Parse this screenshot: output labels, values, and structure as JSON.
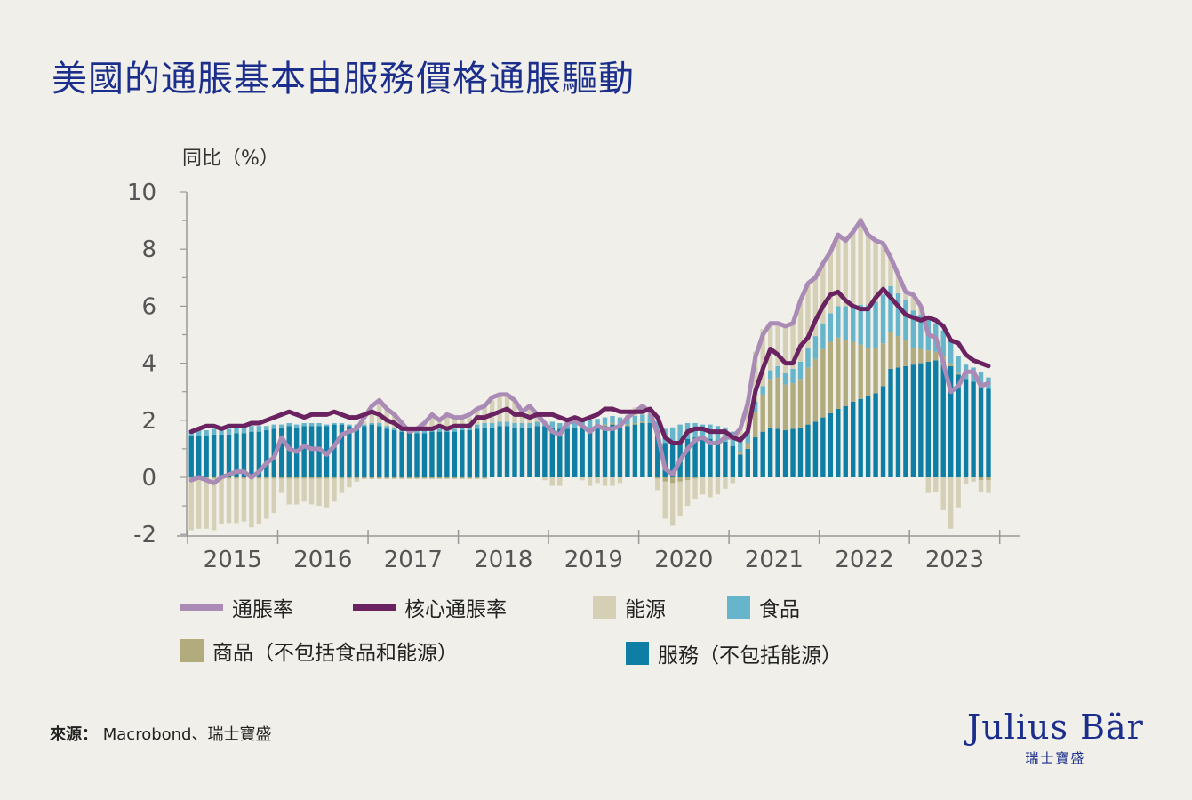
{
  "title": "美國的通脹基本由服務價格通脹驅動",
  "source_label": "來源：",
  "source_text": "Macrobond、瑞士寶盛",
  "logo": {
    "name": "Julius Bär",
    "sub": "瑞士寶盛"
  },
  "chart_data": {
    "type": "bar",
    "stacked": true,
    "title": "美國的通脹基本由服務價格通脹驅動",
    "ylabel": "同比（%）",
    "xlabel": "",
    "ylim": [
      -2,
      10
    ],
    "yticks": [
      10,
      8,
      6,
      4,
      2,
      0,
      -2
    ],
    "xticklabels": [
      "2015",
      "2016",
      "2017",
      "2018",
      "2019",
      "2020",
      "2021",
      "2022",
      "2023"
    ],
    "x_start": "2015-01",
    "frequency": "monthly",
    "grid": false,
    "legend": "bottom",
    "colors": {
      "services": "#0f7ea5",
      "goods": "#b2ab7e",
      "food": "#66b5cb",
      "energy": "#d5d0b5",
      "headline": "#a98bb6",
      "core": "#6a2260"
    },
    "bar_series": [
      {
        "key": "services",
        "name": "服務（不包括能源）",
        "values": [
          1.45,
          1.45,
          1.45,
          1.5,
          1.5,
          1.5,
          1.55,
          1.55,
          1.6,
          1.6,
          1.65,
          1.7,
          1.75,
          1.8,
          1.75,
          1.8,
          1.8,
          1.8,
          1.8,
          1.85,
          1.85,
          1.8,
          1.8,
          1.8,
          1.85,
          1.8,
          1.7,
          1.65,
          1.6,
          1.6,
          1.55,
          1.55,
          1.6,
          1.6,
          1.6,
          1.6,
          1.65,
          1.65,
          1.7,
          1.75,
          1.75,
          1.8,
          1.8,
          1.75,
          1.75,
          1.75,
          1.8,
          1.8,
          1.75,
          1.7,
          1.7,
          1.75,
          1.75,
          1.75,
          1.8,
          1.8,
          1.85,
          1.8,
          1.8,
          1.85,
          1.9,
          1.9,
          1.6,
          1.2,
          1.2,
          1.25,
          1.35,
          1.4,
          1.35,
          1.35,
          1.3,
          1.25,
          1.1,
          0.8,
          1.0,
          1.4,
          1.6,
          1.75,
          1.7,
          1.65,
          1.7,
          1.75,
          1.85,
          1.95,
          2.1,
          2.25,
          2.4,
          2.5,
          2.65,
          2.75,
          2.85,
          2.95,
          3.2,
          3.8,
          3.85,
          3.9,
          3.95,
          4.0,
          4.05,
          4.1,
          4.05,
          3.9,
          3.6,
          3.45,
          3.35,
          3.3,
          3.1
        ]
      },
      {
        "key": "goods",
        "name": "商品（不包括食品和能源）",
        "values": [
          -0.05,
          -0.05,
          -0.05,
          -0.05,
          -0.05,
          -0.05,
          -0.05,
          -0.05,
          -0.05,
          -0.05,
          -0.05,
          -0.05,
          -0.05,
          -0.05,
          -0.05,
          -0.05,
          -0.05,
          -0.05,
          -0.05,
          -0.05,
          -0.05,
          -0.05,
          -0.05,
          -0.05,
          -0.05,
          -0.05,
          -0.05,
          -0.05,
          -0.05,
          -0.05,
          -0.05,
          -0.05,
          -0.05,
          -0.05,
          -0.05,
          -0.05,
          -0.05,
          -0.05,
          -0.05,
          -0.05,
          0.0,
          0.0,
          0.0,
          0.0,
          0.0,
          0.0,
          0.0,
          0.0,
          0.0,
          0.0,
          0.0,
          0.0,
          0.0,
          0.0,
          0.0,
          0.05,
          0.05,
          0.05,
          0.05,
          0.05,
          0.05,
          0.0,
          -0.05,
          -0.15,
          -0.2,
          -0.15,
          -0.1,
          -0.05,
          0.0,
          0.0,
          0.0,
          0.0,
          0.0,
          0.1,
          0.2,
          0.9,
          1.3,
          1.7,
          1.8,
          1.6,
          1.6,
          1.7,
          2.0,
          2.2,
          2.4,
          2.5,
          2.5,
          2.3,
          2.1,
          1.9,
          1.7,
          1.6,
          1.5,
          1.3,
          1.1,
          0.9,
          0.6,
          0.5,
          0.4,
          0.3,
          0.2,
          0.1,
          0.05,
          0.0,
          0.0,
          -0.1,
          -0.1
        ]
      },
      {
        "key": "food",
        "name": "食品",
        "values": [
          0.2,
          0.2,
          0.2,
          0.2,
          0.2,
          0.2,
          0.2,
          0.2,
          0.2,
          0.2,
          0.15,
          0.15,
          0.1,
          0.1,
          0.1,
          0.1,
          0.1,
          0.1,
          0.05,
          0.05,
          0.05,
          0.05,
          0.05,
          0.05,
          0.05,
          0.1,
          0.1,
          0.1,
          0.1,
          0.1,
          0.1,
          0.1,
          0.1,
          0.1,
          0.1,
          0.1,
          0.1,
          0.1,
          0.15,
          0.15,
          0.15,
          0.15,
          0.15,
          0.15,
          0.15,
          0.15,
          0.15,
          0.15,
          0.2,
          0.2,
          0.2,
          0.2,
          0.25,
          0.25,
          0.25,
          0.25,
          0.25,
          0.25,
          0.25,
          0.25,
          0.25,
          0.3,
          0.35,
          0.5,
          0.55,
          0.6,
          0.55,
          0.5,
          0.5,
          0.5,
          0.5,
          0.5,
          0.5,
          0.4,
          0.4,
          0.35,
          0.3,
          0.3,
          0.4,
          0.4,
          0.5,
          0.6,
          0.7,
          0.8,
          0.9,
          1.0,
          1.1,
          1.2,
          1.3,
          1.4,
          1.5,
          1.6,
          1.7,
          1.6,
          1.5,
          1.4,
          1.3,
          1.2,
          1.1,
          1.0,
          0.9,
          0.8,
          0.6,
          0.5,
          0.5,
          0.4,
          0.4
        ]
      },
      {
        "key": "energy",
        "name": "能源",
        "values": [
          -1.8,
          -1.75,
          -1.75,
          -1.8,
          -1.6,
          -1.55,
          -1.55,
          -1.5,
          -1.7,
          -1.6,
          -1.4,
          -1.2,
          -0.5,
          -0.9,
          -0.9,
          -0.8,
          -0.9,
          -0.95,
          -1.0,
          -0.8,
          -0.5,
          -0.3,
          -0.1,
          0.1,
          0.5,
          0.7,
          0.55,
          0.5,
          0.3,
          0.0,
          0.1,
          0.3,
          0.5,
          0.35,
          0.5,
          0.4,
          0.3,
          0.35,
          0.5,
          0.55,
          0.8,
          0.9,
          0.9,
          0.75,
          0.4,
          0.55,
          0.2,
          -0.1,
          -0.3,
          -0.3,
          0.0,
          0.05,
          -0.1,
          -0.3,
          -0.2,
          -0.3,
          -0.3,
          -0.2,
          0.1,
          0.3,
          0.3,
          0.1,
          -0.4,
          -1.3,
          -1.5,
          -1.2,
          -0.9,
          -0.7,
          -0.6,
          -0.7,
          -0.6,
          -0.4,
          -0.2,
          0.4,
          1.1,
          1.75,
          2.0,
          1.65,
          1.5,
          1.65,
          1.6,
          2.15,
          2.25,
          2.05,
          2.1,
          2.15,
          2.5,
          2.3,
          2.55,
          3.05,
          2.45,
          2.15,
          1.8,
          1.0,
          0.65,
          0.3,
          0.55,
          0.3,
          -0.55,
          -0.5,
          -1.15,
          -1.8,
          -1.05,
          -0.25,
          -0.15,
          -0.4,
          -0.45
        ]
      }
    ],
    "line_series": [
      {
        "key": "headline",
        "name": "通脹率",
        "values": [
          -0.1,
          0.0,
          -0.1,
          -0.2,
          0.0,
          0.1,
          0.2,
          0.2,
          0.0,
          0.2,
          0.5,
          0.7,
          1.4,
          1.0,
          0.9,
          1.1,
          1.0,
          1.0,
          0.8,
          1.1,
          1.5,
          1.6,
          1.7,
          2.1,
          2.5,
          2.7,
          2.4,
          2.2,
          1.9,
          1.6,
          1.7,
          1.9,
          2.2,
          2.0,
          2.2,
          2.1,
          2.1,
          2.2,
          2.4,
          2.5,
          2.8,
          2.9,
          2.9,
          2.7,
          2.3,
          2.5,
          2.2,
          1.9,
          1.6,
          1.5,
          1.9,
          2.0,
          1.8,
          1.6,
          1.8,
          1.7,
          1.7,
          1.8,
          2.1,
          2.3,
          2.5,
          2.3,
          1.5,
          0.3,
          0.1,
          0.6,
          1.0,
          1.3,
          1.4,
          1.2,
          1.2,
          1.4,
          1.4,
          1.7,
          2.6,
          4.2,
          5.0,
          5.4,
          5.4,
          5.3,
          5.4,
          6.2,
          6.8,
          7.0,
          7.5,
          7.9,
          8.5,
          8.3,
          8.6,
          9.0,
          8.5,
          8.3,
          8.2,
          7.7,
          7.1,
          6.5,
          6.4,
          6.0,
          5.0,
          4.9,
          4.0,
          3.0,
          3.2,
          3.7,
          3.7,
          3.2,
          3.3
        ]
      },
      {
        "key": "core",
        "name": "核心通脹率",
        "values": [
          1.6,
          1.7,
          1.8,
          1.8,
          1.7,
          1.8,
          1.8,
          1.8,
          1.9,
          1.9,
          2.0,
          2.1,
          2.2,
          2.3,
          2.2,
          2.1,
          2.2,
          2.2,
          2.2,
          2.3,
          2.2,
          2.1,
          2.1,
          2.2,
          2.3,
          2.2,
          2.0,
          1.9,
          1.7,
          1.7,
          1.7,
          1.7,
          1.7,
          1.8,
          1.7,
          1.8,
          1.8,
          1.8,
          2.1,
          2.1,
          2.2,
          2.3,
          2.4,
          2.2,
          2.2,
          2.1,
          2.2,
          2.2,
          2.2,
          2.1,
          2.0,
          2.1,
          2.0,
          2.1,
          2.2,
          2.4,
          2.4,
          2.3,
          2.3,
          2.3,
          2.3,
          2.4,
          2.1,
          1.4,
          1.2,
          1.2,
          1.6,
          1.7,
          1.7,
          1.6,
          1.6,
          1.6,
          1.4,
          1.3,
          1.6,
          3.0,
          3.8,
          4.5,
          4.3,
          4.0,
          4.0,
          4.6,
          4.9,
          5.5,
          6.0,
          6.4,
          6.5,
          6.2,
          6.0,
          5.9,
          5.9,
          6.3,
          6.6,
          6.3,
          6.0,
          5.7,
          5.6,
          5.5,
          5.6,
          5.5,
          5.3,
          4.8,
          4.7,
          4.3,
          4.1,
          4.0,
          3.9
        ]
      }
    ],
    "legend_entries": [
      {
        "key": "headline",
        "label": "通脹率",
        "kind": "line"
      },
      {
        "key": "core",
        "label": "核心通脹率",
        "kind": "line"
      },
      {
        "key": "energy",
        "label": "能源",
        "kind": "box"
      },
      {
        "key": "food",
        "label": "食品",
        "kind": "box"
      },
      {
        "key": "goods",
        "label": "商品（不包括食品和能源）",
        "kind": "box"
      },
      {
        "key": "services",
        "label": "服務（不包括能源）",
        "kind": "box"
      }
    ]
  }
}
